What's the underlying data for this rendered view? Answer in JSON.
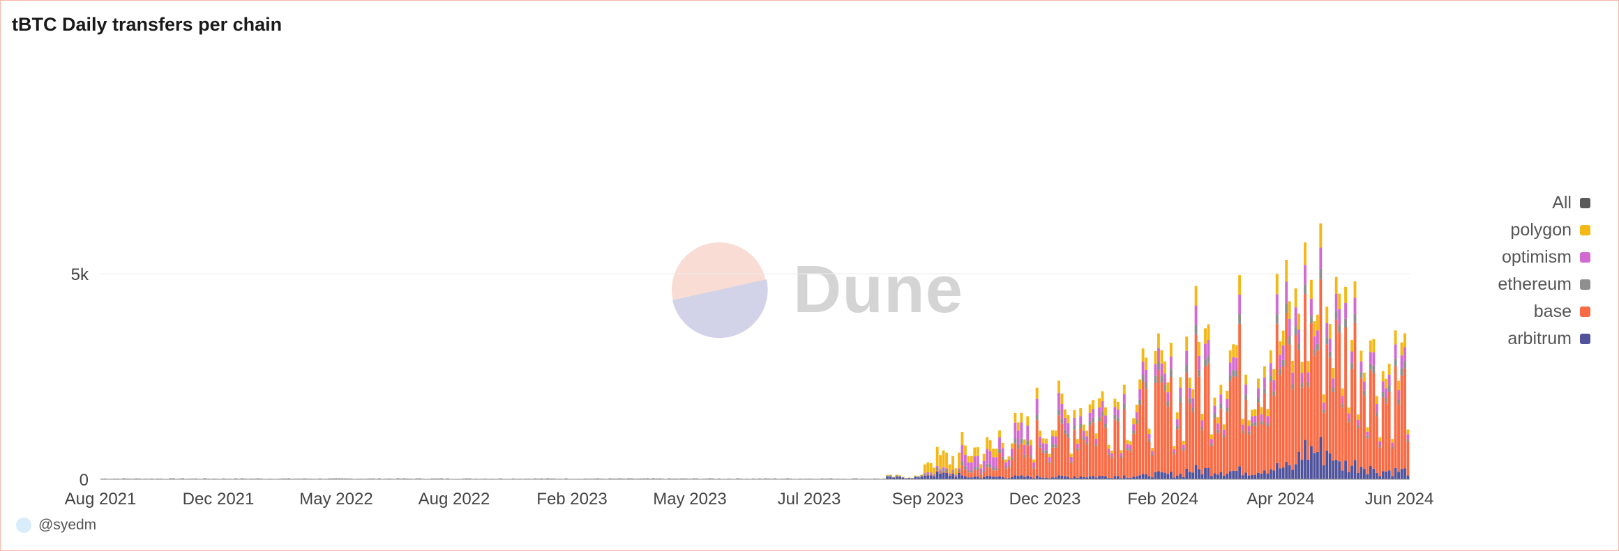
{
  "title": "tBTC Daily transfers per chain",
  "author": "@syedm",
  "watermark": "Dune",
  "legend": [
    {
      "name": "All",
      "color": "#5a5a5a"
    },
    {
      "name": "polygon",
      "color": "#f4b816"
    },
    {
      "name": "optimism",
      "color": "#d36ad0"
    },
    {
      "name": "ethereum",
      "color": "#8f8f8f"
    },
    {
      "name": "base",
      "color": "#f96b44"
    },
    {
      "name": "arbitrum",
      "color": "#50529b"
    }
  ],
  "chart_data": {
    "type": "bar",
    "stacked": true,
    "title": "tBTC Daily transfers per chain",
    "xlabel": "",
    "ylabel": "",
    "y_ticks": [
      "0",
      "5k"
    ],
    "y_tick_values": [
      0,
      5000
    ],
    "ylim": [
      0,
      10000
    ],
    "x_ticks": [
      "Aug 2021",
      "Dec 2021",
      "May 2022",
      "Aug 2022",
      "Feb 2023",
      "May 2023",
      "Jul 2023",
      "Sep 2023",
      "Dec 2023",
      "Feb 2024",
      "Apr 2024",
      "Jun 2024"
    ],
    "grid": "horizontal",
    "legend_position": "right",
    "series_order": [
      "arbitrum",
      "base",
      "ethereum",
      "optimism",
      "polygon"
    ],
    "x_monthly": [
      "2021-08",
      "2021-09",
      "2021-10",
      "2021-11",
      "2021-12",
      "2022-01",
      "2022-02",
      "2022-03",
      "2022-04",
      "2022-05",
      "2022-06",
      "2022-07",
      "2022-08",
      "2022-09",
      "2022-10",
      "2022-11",
      "2022-12",
      "2023-01",
      "2023-02",
      "2023-03",
      "2023-04",
      "2023-05",
      "2023-06",
      "2023-07",
      "2023-08",
      "2023-09",
      "2023-10",
      "2023-11",
      "2023-12",
      "2024-01",
      "2024-02",
      "2024-03",
      "2024-04",
      "2024-05",
      "2024-06"
    ],
    "series": [
      {
        "name": "arbitrum",
        "values": [
          5,
          5,
          5,
          5,
          5,
          5,
          5,
          5,
          5,
          5,
          5,
          5,
          5,
          5,
          5,
          5,
          5,
          5,
          5,
          5,
          5,
          40,
          120,
          60,
          60,
          60,
          70,
          80,
          120,
          220,
          200,
          280,
          700,
          350,
          200
        ]
      },
      {
        "name": "base",
        "values": [
          0,
          0,
          0,
          0,
          0,
          0,
          0,
          0,
          0,
          0,
          0,
          0,
          0,
          0,
          0,
          0,
          0,
          0,
          0,
          0,
          0,
          0,
          20,
          150,
          500,
          900,
          1200,
          1400,
          1500,
          2000,
          2200,
          2400,
          2600,
          2500,
          1800
        ]
      },
      {
        "name": "ethereum",
        "values": [
          10,
          10,
          10,
          10,
          10,
          10,
          10,
          10,
          10,
          10,
          10,
          10,
          10,
          10,
          10,
          10,
          10,
          10,
          10,
          10,
          10,
          20,
          40,
          60,
          80,
          90,
          100,
          110,
          120,
          150,
          150,
          160,
          170,
          160,
          140
        ]
      },
      {
        "name": "optimism",
        "values": [
          0,
          0,
          0,
          0,
          0,
          0,
          0,
          0,
          0,
          0,
          0,
          0,
          0,
          0,
          0,
          0,
          0,
          0,
          0,
          0,
          0,
          0,
          30,
          250,
          250,
          250,
          200,
          200,
          200,
          300,
          300,
          350,
          350,
          300,
          250
        ]
      },
      {
        "name": "polygon",
        "values": [
          0,
          0,
          0,
          0,
          0,
          0,
          0,
          0,
          0,
          0,
          0,
          0,
          0,
          0,
          0,
          0,
          0,
          0,
          0,
          0,
          0,
          10,
          300,
          200,
          150,
          180,
          200,
          200,
          220,
          300,
          300,
          350,
          400,
          300,
          250
        ]
      }
    ]
  }
}
